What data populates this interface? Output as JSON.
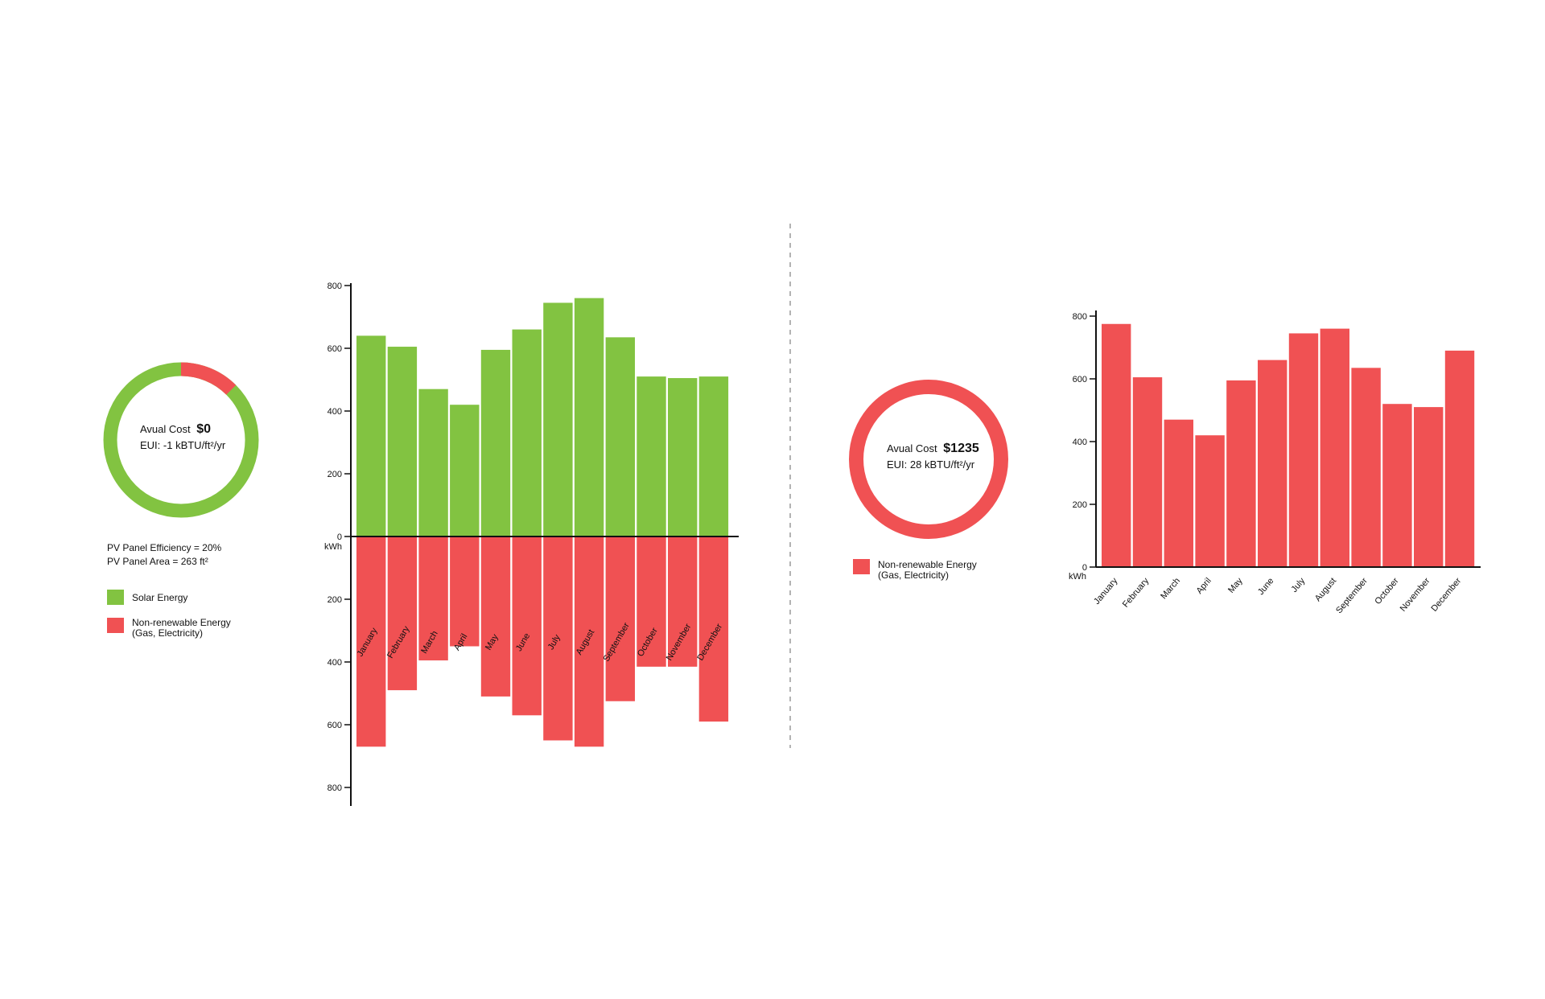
{
  "colors": {
    "solar": "#82c341",
    "nonrenewable": "#f05153",
    "axis": "#111111",
    "divider": "#9a9a9a"
  },
  "left_panel": {
    "donut": {
      "solar_fraction": 0.875,
      "nonrenewable_fraction": 0.125,
      "cost_label": "Avual Cost",
      "cost_value": "$0",
      "eui_text": "EUI: -1 kBTU/ft²/yr"
    },
    "pv_efficiency": "PV Panel Efficiency = 20%",
    "pv_area": "PV Panel Area = 263 ft²",
    "legend": [
      {
        "label": "Solar Energy",
        "color": "#82c341"
      },
      {
        "label": "Non-renewable Energy",
        "label2": "(Gas, Electricity)",
        "color": "#f05153"
      }
    ]
  },
  "right_panel": {
    "donut": {
      "cost_label": "Avual Cost",
      "cost_value": "$1235",
      "eui_text": "EUI: 28 kBTU/ft²/yr"
    },
    "legend": [
      {
        "label": "Non-renewable Energy",
        "label2": "(Gas, Electricity)",
        "color": "#f05153"
      }
    ]
  },
  "chart_data": [
    {
      "type": "bar",
      "categories": [
        "January",
        "February",
        "March",
        "April",
        "May",
        "June",
        "July",
        "August",
        "September",
        "October",
        "November",
        "December"
      ],
      "series": [
        {
          "name": "Solar Energy",
          "values": [
            640,
            605,
            470,
            420,
            595,
            660,
            745,
            760,
            635,
            510,
            505,
            510
          ]
        },
        {
          "name": "Non-renewable Energy",
          "values": [
            670,
            490,
            395,
            350,
            510,
            570,
            650,
            670,
            525,
            415,
            415,
            590
          ]
        }
      ],
      "ylabel": "kWh",
      "ylim": [
        -800,
        800
      ],
      "yticks_up": [
        0,
        200,
        400,
        600,
        800
      ],
      "yticks_down": [
        200,
        400,
        600,
        800
      ],
      "zero_label": "0"
    },
    {
      "type": "bar",
      "categories": [
        "January",
        "February",
        "March",
        "April",
        "May",
        "June",
        "July",
        "August",
        "September",
        "October",
        "November",
        "December"
      ],
      "series": [
        {
          "name": "Non-renewable Energy",
          "values": [
            775,
            605,
            470,
            420,
            595,
            660,
            745,
            760,
            635,
            520,
            510,
            690
          ]
        }
      ],
      "ylabel": "kWh",
      "ylim": [
        0,
        800
      ],
      "yticks": [
        0,
        200,
        400,
        600,
        800
      ]
    }
  ]
}
